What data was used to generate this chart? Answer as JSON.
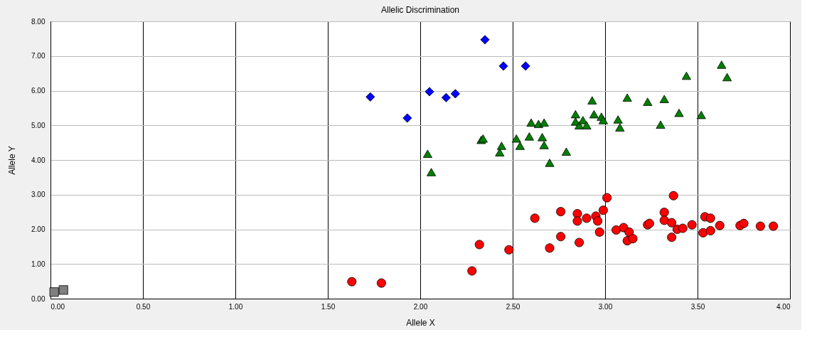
{
  "chart_data": {
    "type": "scatter",
    "title": "Allelic Discrimination",
    "xlabel": "Allele X",
    "ylabel": "Allele Y",
    "xlim": [
      0,
      4
    ],
    "ylim": [
      0,
      8
    ],
    "xticks": [
      {
        "value": 0,
        "label": "0.00"
      },
      {
        "value": 0.5,
        "label": "0.50"
      },
      {
        "value": 1,
        "label": "1.00"
      },
      {
        "value": 1.5,
        "label": "1.50"
      },
      {
        "value": 2,
        "label": "2.00"
      },
      {
        "value": 2.5,
        "label": "2.50"
      },
      {
        "value": 3,
        "label": "3.00"
      },
      {
        "value": 3.5,
        "label": "3.50"
      },
      {
        "value": 4,
        "label": "4.00"
      }
    ],
    "yticks": [
      {
        "value": 0,
        "label": "0.00"
      },
      {
        "value": 1,
        "label": "1.00"
      },
      {
        "value": 2,
        "label": "2.00"
      },
      {
        "value": 3,
        "label": "3.00"
      },
      {
        "value": 4,
        "label": "4.00"
      },
      {
        "value": 5,
        "label": "5.00"
      },
      {
        "value": 6,
        "label": "6.00"
      },
      {
        "value": 7,
        "label": "7.00"
      },
      {
        "value": 8,
        "label": "8.00"
      }
    ],
    "grid": true,
    "series": [
      {
        "color": "#0000ff",
        "marker": "diamond",
        "x": [
          1.73,
          1.93,
          2.05,
          2.14,
          2.19,
          2.35,
          2.45,
          2.57
        ],
        "values": [
          5.82,
          5.21,
          5.97,
          5.8,
          5.91,
          7.47,
          6.71,
          6.71
        ]
      },
      {
        "color": "#008000",
        "marker": "triangle",
        "x": [
          2.04,
          2.06,
          2.33,
          2.34,
          2.43,
          2.44,
          2.52,
          2.54,
          2.59,
          2.6,
          2.64,
          2.67,
          2.66,
          2.67,
          2.7,
          2.79,
          2.84,
          2.84,
          2.86,
          2.88,
          2.9,
          2.93,
          2.94,
          2.98,
          2.99,
          3.12,
          3.07,
          3.08,
          3.23,
          3.32,
          3.3,
          3.4,
          3.44,
          3.52,
          3.63,
          3.66
        ],
        "values": [
          4.18,
          3.65,
          4.58,
          4.62,
          4.22,
          4.41,
          4.62,
          4.41,
          4.68,
          5.08,
          5.04,
          5.08,
          4.66,
          4.43,
          3.92,
          4.24,
          5.32,
          5.11,
          5.0,
          5.15,
          5.0,
          5.72,
          5.32,
          5.25,
          5.15,
          5.8,
          5.17,
          4.94,
          5.68,
          5.76,
          5.02,
          5.36,
          6.43,
          5.3,
          6.75,
          6.39
        ]
      },
      {
        "color": "#ff0000",
        "marker": "circle",
        "x": [
          1.63,
          1.79,
          2.28,
          2.32,
          2.48,
          2.62,
          2.76,
          2.76,
          2.7,
          2.85,
          2.85,
          2.86,
          2.9,
          2.95,
          2.96,
          2.97,
          2.99,
          3.01,
          3.06,
          3.1,
          3.13,
          3.12,
          3.15,
          3.23,
          3.24,
          3.32,
          3.32,
          3.37,
          3.36,
          3.36,
          3.39,
          3.42,
          3.47,
          3.54,
          3.57,
          3.53,
          3.57,
          3.62,
          3.73,
          3.75,
          3.84,
          3.91
        ],
        "values": [
          0.49,
          0.45,
          0.8,
          1.56,
          1.41,
          2.32,
          2.51,
          1.79,
          1.46,
          2.45,
          2.24,
          1.62,
          2.32,
          2.38,
          2.24,
          1.92,
          2.55,
          2.91,
          1.98,
          2.05,
          1.92,
          1.67,
          1.73,
          2.13,
          2.17,
          2.49,
          2.26,
          2.97,
          2.19,
          1.77,
          2.0,
          2.03,
          2.13,
          2.36,
          2.32,
          1.9,
          1.96,
          2.11,
          2.11,
          2.17,
          2.09,
          2.09
        ]
      },
      {
        "color": "#808080",
        "marker": "square",
        "x": [
          0.02,
          0.07
        ],
        "values": [
          0.19,
          0.25
        ]
      }
    ]
  }
}
